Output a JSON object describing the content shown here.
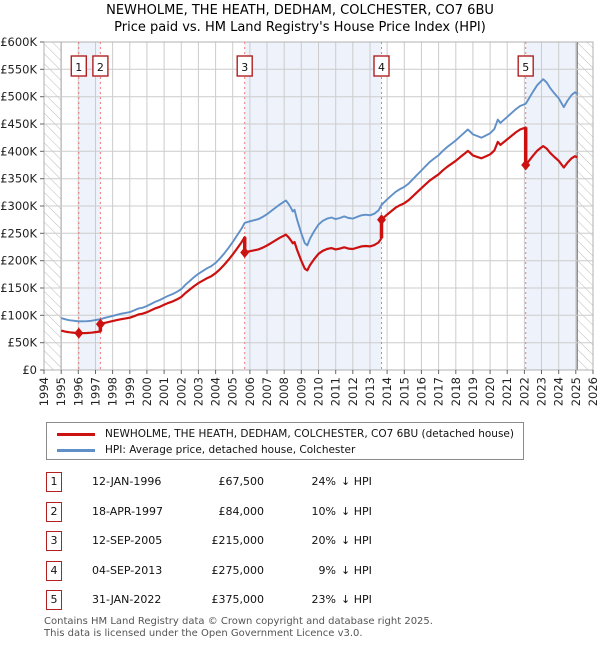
{
  "title": {
    "line1": "NEWHOLME, THE HEATH, DEDHAM, COLCHESTER, CO7 6BU",
    "line2": "Price paid vs. HM Land Registry's House Price Index (HPI)"
  },
  "legend": {
    "items": [
      {
        "label": "NEWHOLME, THE HEATH, DEDHAM, COLCHESTER, CO7 6BU (detached house)",
        "color": "#cc1111"
      },
      {
        "label": "HPI: Average price, detached house, Colchester",
        "color": "#6090c8"
      }
    ]
  },
  "table": {
    "hpi_suffix": "↓ HPI",
    "rows": [
      {
        "num": "1",
        "date": "12-JAN-1996",
        "price": "£67,500",
        "pct": "24%"
      },
      {
        "num": "2",
        "date": "18-APR-1997",
        "price": "£84,000",
        "pct": "10%"
      },
      {
        "num": "3",
        "date": "12-SEP-2005",
        "price": "£215,000",
        "pct": "20%"
      },
      {
        "num": "4",
        "date": "04-SEP-2013",
        "price": "£275,000",
        "pct": "9%"
      },
      {
        "num": "5",
        "date": "31-JAN-2022",
        "price": "£375,000",
        "pct": "23%"
      }
    ]
  },
  "footer": {
    "line1": "Contains HM Land Registry data © Crown copyright and database right 2025.",
    "line2": "This data is licensed under the Open Government Licence v3.0."
  },
  "chart_data": {
    "type": "line",
    "title": "NEWHOLME, THE HEATH, DEDHAM, COLCHESTER, CO7 6BU — Price paid vs. HPI",
    "xlabel": "",
    "ylabel": "",
    "x_range": [
      1994,
      2026
    ],
    "y_range_k": [
      0,
      600
    ],
    "data_range": [
      1995.0,
      2025.08
    ],
    "plot": {
      "l": 44,
      "t": 42,
      "r": 593,
      "b": 370
    },
    "grid": true,
    "x_ticks": [
      "1994",
      "1995",
      "1996",
      "1997",
      "1998",
      "1999",
      "2000",
      "2001",
      "2002",
      "2003",
      "2004",
      "2005",
      "2006",
      "2007",
      "2008",
      "2009",
      "2010",
      "2011",
      "2012",
      "2013",
      "2014",
      "2015",
      "2016",
      "2017",
      "2018",
      "2019",
      "2020",
      "2021",
      "2022",
      "2023",
      "2024",
      "2025",
      "2026"
    ],
    "y_ticks": [
      {
        "v": 0,
        "label": "£0"
      },
      {
        "v": 50,
        "label": "£50K"
      },
      {
        "v": 100,
        "label": "£100K"
      },
      {
        "v": 150,
        "label": "£150K"
      },
      {
        "v": 200,
        "label": "£200K"
      },
      {
        "v": 250,
        "label": "£250K"
      },
      {
        "v": 300,
        "label": "£300K"
      },
      {
        "v": 350,
        "label": "£350K"
      },
      {
        "v": 400,
        "label": "£400K"
      },
      {
        "v": 450,
        "label": "£450K"
      },
      {
        "v": 500,
        "label": "£500K"
      },
      {
        "v": 550,
        "label": "£550K"
      },
      {
        "v": 600,
        "label": "£600K"
      }
    ],
    "shaded_periods": [
      [
        1996.03,
        1997.29
      ],
      [
        2005.7,
        2013.67
      ],
      [
        2022.08,
        2025.08
      ]
    ],
    "no_data_periods": [
      [
        1994.0,
        1995.0
      ],
      [
        2025.08,
        2026.0
      ]
    ],
    "sales": [
      {
        "n": "1",
        "year": 1996.03,
        "price_k": 67.5,
        "ratio": 0.758,
        "date": "12-JAN-1996",
        "price": "£67,500",
        "vs_hpi": "24% below HPI"
      },
      {
        "n": "2",
        "year": 1997.29,
        "price_k": 84,
        "ratio": 0.903,
        "date": "18-APR-1997",
        "price": "£84,000",
        "vs_hpi": "10% below HPI"
      },
      {
        "n": "3",
        "year": 2005.7,
        "price_k": 215,
        "ratio": 0.799,
        "date": "12-SEP-2005",
        "price": "£215,000",
        "vs_hpi": "20% below HPI"
      },
      {
        "n": "4",
        "year": 2013.67,
        "price_k": 275,
        "ratio": 0.911,
        "date": "04-SEP-2013",
        "price": "£275,000",
        "vs_hpi": "9% below HPI"
      },
      {
        "n": "5",
        "year": 2022.08,
        "price_k": 375,
        "ratio": 0.77,
        "date": "31-JAN-2022",
        "price": "£375,000",
        "vs_hpi": "23% below HPI"
      }
    ],
    "series_names": [
      "Price paid (HPI-adjusted, detached house)",
      "HPI: Average price, detached house, Colchester"
    ],
    "hpi_series": [
      [
        1995.0,
        95
      ],
      [
        1995.17,
        93.5
      ],
      [
        1995.33,
        92
      ],
      [
        1995.5,
        91
      ],
      [
        1995.67,
        90.3
      ],
      [
        1995.83,
        89.6
      ],
      [
        1996.03,
        89
      ],
      [
        1996.25,
        89
      ],
      [
        1996.5,
        89.3
      ],
      [
        1996.75,
        90
      ],
      [
        1997.0,
        91.5
      ],
      [
        1997.29,
        93
      ],
      [
        1997.5,
        95
      ],
      [
        1997.75,
        97
      ],
      [
        1998.0,
        99
      ],
      [
        1998.25,
        101
      ],
      [
        1998.5,
        103
      ],
      [
        1998.75,
        104.5
      ],
      [
        1999.0,
        106
      ],
      [
        1999.25,
        109
      ],
      [
        1999.5,
        112.5
      ],
      [
        1999.75,
        114
      ],
      [
        2000.0,
        117
      ],
      [
        2000.25,
        121
      ],
      [
        2000.5,
        125
      ],
      [
        2000.75,
        128
      ],
      [
        2001.0,
        132
      ],
      [
        2001.25,
        136
      ],
      [
        2001.5,
        139
      ],
      [
        2001.75,
        143
      ],
      [
        2002.0,
        148
      ],
      [
        2002.25,
        156
      ],
      [
        2002.5,
        163
      ],
      [
        2002.75,
        170
      ],
      [
        2003.0,
        176
      ],
      [
        2003.25,
        181
      ],
      [
        2003.5,
        186
      ],
      [
        2003.75,
        190
      ],
      [
        2004.0,
        196
      ],
      [
        2004.25,
        204
      ],
      [
        2004.5,
        213
      ],
      [
        2004.75,
        223
      ],
      [
        2005.0,
        234
      ],
      [
        2005.25,
        246
      ],
      [
        2005.5,
        258
      ],
      [
        2005.7,
        269
      ],
      [
        2006.0,
        272
      ],
      [
        2006.25,
        274
      ],
      [
        2006.5,
        276
      ],
      [
        2006.75,
        280
      ],
      [
        2007.0,
        285
      ],
      [
        2007.25,
        291
      ],
      [
        2007.5,
        297
      ],
      [
        2007.75,
        303
      ],
      [
        2008.0,
        308
      ],
      [
        2008.1,
        310
      ],
      [
        2008.25,
        304
      ],
      [
        2008.4,
        296
      ],
      [
        2008.5,
        290
      ],
      [
        2008.6,
        293
      ],
      [
        2008.75,
        275
      ],
      [
        2009.0,
        250
      ],
      [
        2009.2,
        232
      ],
      [
        2009.35,
        228
      ],
      [
        2009.5,
        240
      ],
      [
        2009.75,
        254
      ],
      [
        2010.0,
        266
      ],
      [
        2010.25,
        273
      ],
      [
        2010.5,
        277
      ],
      [
        2010.75,
        279
      ],
      [
        2011.0,
        276
      ],
      [
        2011.25,
        278
      ],
      [
        2011.5,
        281
      ],
      [
        2011.75,
        278
      ],
      [
        2012.0,
        277
      ],
      [
        2012.25,
        280
      ],
      [
        2012.5,
        283
      ],
      [
        2012.75,
        284
      ],
      [
        2013.0,
        283
      ],
      [
        2013.25,
        286
      ],
      [
        2013.5,
        292
      ],
      [
        2013.67,
        302
      ],
      [
        2014.0,
        312
      ],
      [
        2014.25,
        319
      ],
      [
        2014.5,
        326
      ],
      [
        2014.75,
        331
      ],
      [
        2015.0,
        335
      ],
      [
        2015.25,
        341
      ],
      [
        2015.5,
        349
      ],
      [
        2015.75,
        357
      ],
      [
        2016.0,
        365
      ],
      [
        2016.25,
        373
      ],
      [
        2016.5,
        381
      ],
      [
        2016.75,
        387
      ],
      [
        2017.0,
        393
      ],
      [
        2017.25,
        401
      ],
      [
        2017.5,
        408
      ],
      [
        2017.75,
        414
      ],
      [
        2018.0,
        420
      ],
      [
        2018.25,
        427
      ],
      [
        2018.5,
        434
      ],
      [
        2018.7,
        440
      ],
      [
        2018.85,
        436
      ],
      [
        2019.0,
        431
      ],
      [
        2019.25,
        428
      ],
      [
        2019.5,
        425
      ],
      [
        2019.75,
        429
      ],
      [
        2020.0,
        433
      ],
      [
        2020.25,
        441
      ],
      [
        2020.45,
        458
      ],
      [
        2020.6,
        452
      ],
      [
        2020.75,
        456
      ],
      [
        2021.0,
        463
      ],
      [
        2021.25,
        470
      ],
      [
        2021.5,
        477
      ],
      [
        2021.75,
        483
      ],
      [
        2022.08,
        487
      ],
      [
        2022.25,
        496
      ],
      [
        2022.5,
        509
      ],
      [
        2022.75,
        521
      ],
      [
        2023.0,
        529
      ],
      [
        2023.1,
        532
      ],
      [
        2023.3,
        526
      ],
      [
        2023.5,
        516
      ],
      [
        2023.75,
        506
      ],
      [
        2024.0,
        497
      ],
      [
        2024.3,
        481
      ],
      [
        2024.5,
        492
      ],
      [
        2024.75,
        503
      ],
      [
        2024.95,
        508
      ],
      [
        2025.08,
        505
      ]
    ],
    "colors": {
      "hpi": "#6090c8",
      "price": "#cc1111",
      "band": "#eef2fb",
      "grid": "#cccccc",
      "sale_line": "#f07878",
      "marker_box": "#b22020",
      "hatch": "#bbbbbb",
      "data_edge": "#777777"
    },
    "legend_position": "below chart, boxed"
  }
}
